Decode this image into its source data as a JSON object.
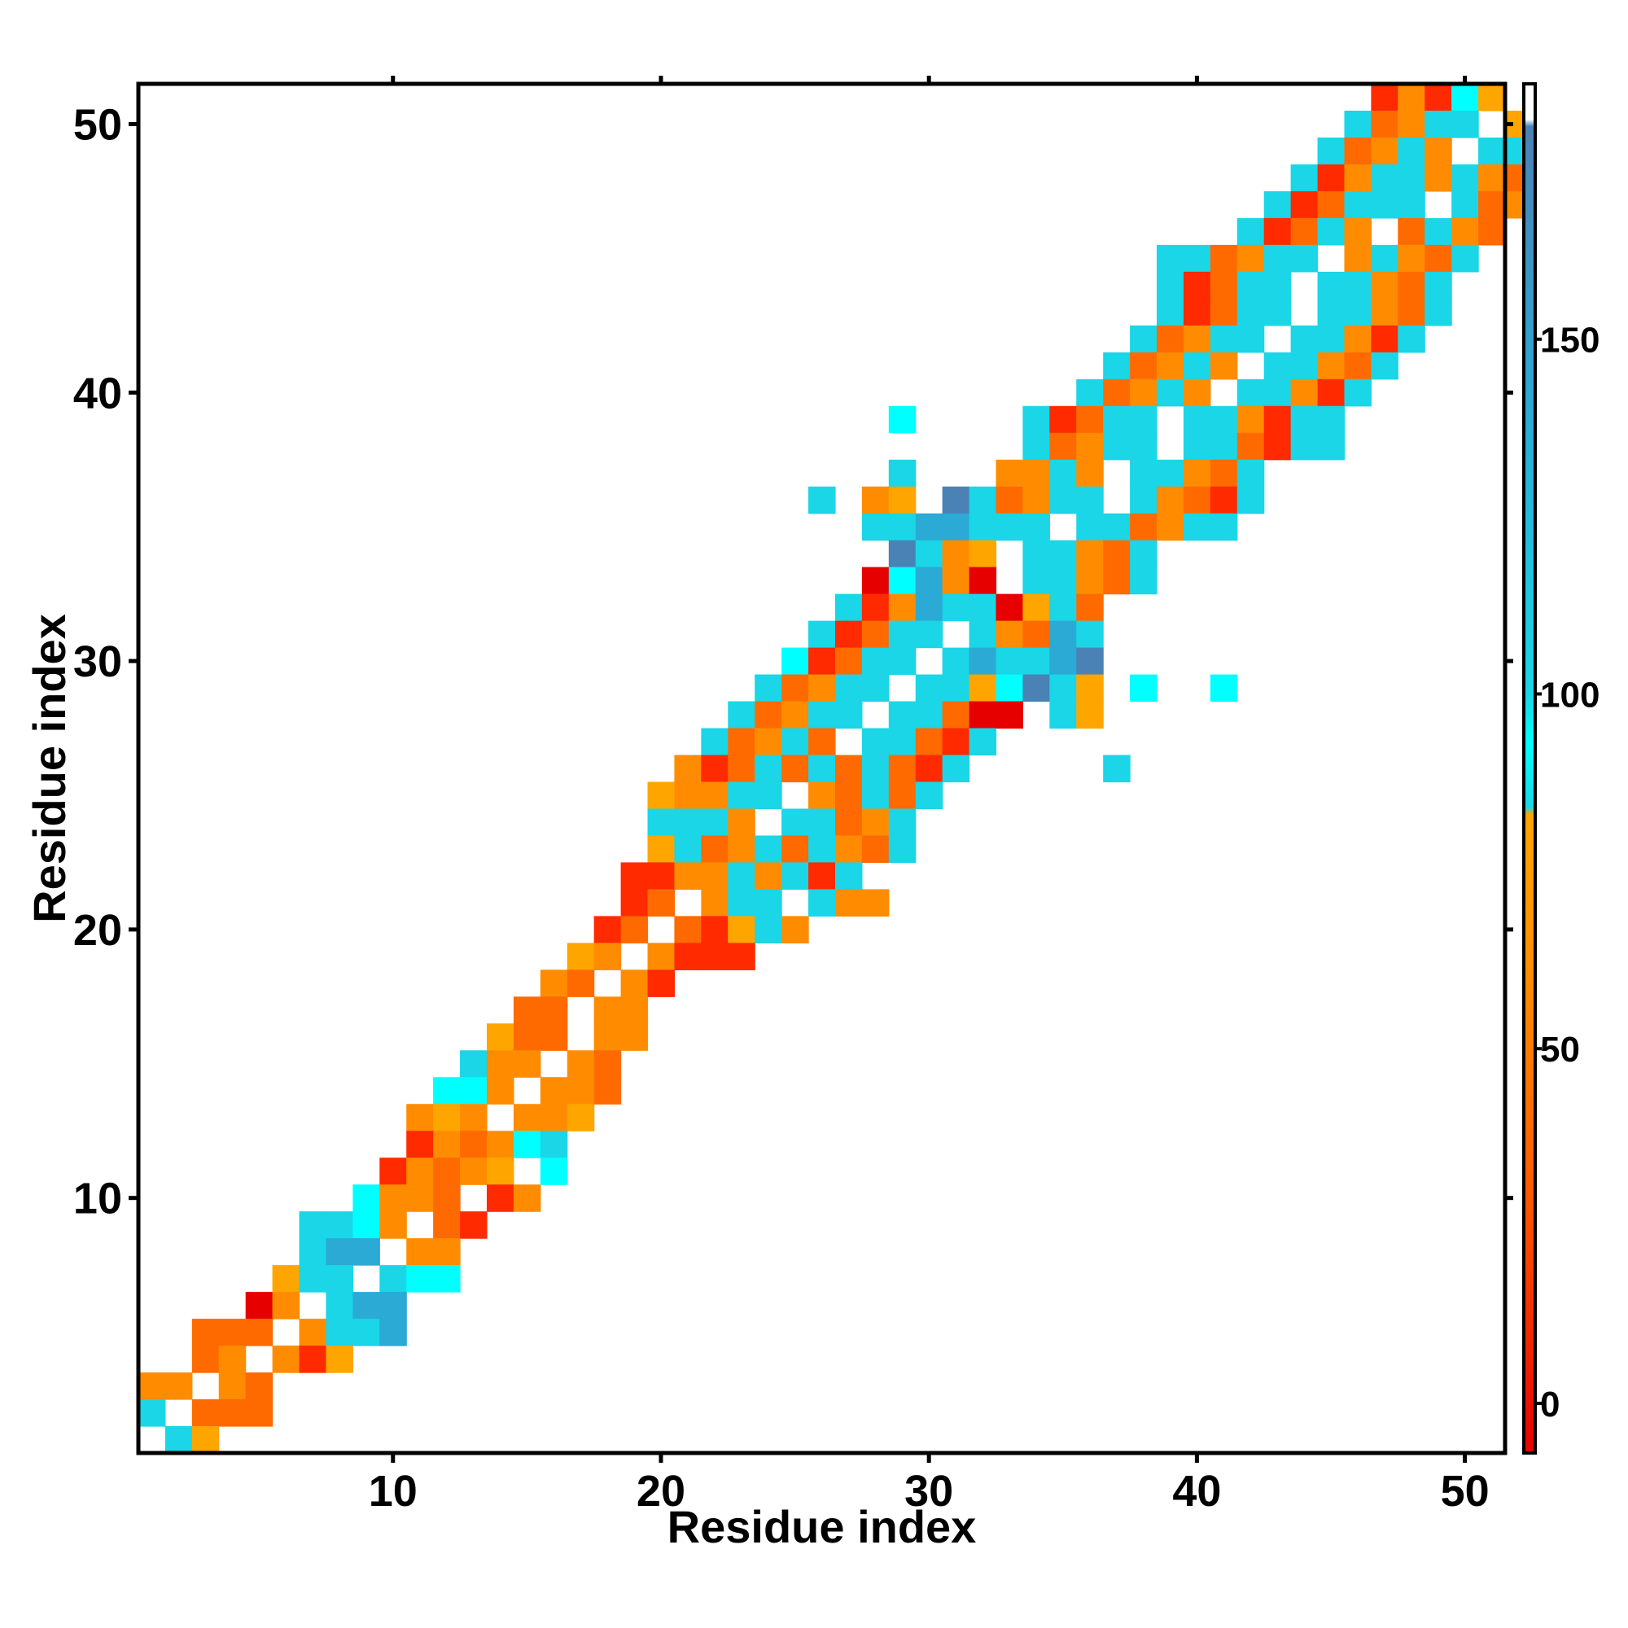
{
  "chart_data": {
    "type": "heatmap",
    "title": "",
    "xlabel": "Residue index",
    "ylabel": "Residue index",
    "xlim": [
      0.5,
      51.5
    ],
    "ylim": [
      0.5,
      51.5
    ],
    "xticks": [
      10,
      20,
      30,
      40,
      50
    ],
    "yticks": [
      10,
      20,
      30,
      40,
      50
    ],
    "grid": false,
    "colorbar": {
      "range": [
        -7,
        186
      ],
      "ticks": [
        0,
        50,
        100,
        150
      ],
      "stops": [
        {
          "value": -7,
          "color": "#e60000"
        },
        {
          "value": 30,
          "color": "#ff5a00"
        },
        {
          "value": 60,
          "color": "#ff8c00"
        },
        {
          "value": 83,
          "color": "#ffa500"
        },
        {
          "value": 84,
          "color": "#1ad6e6"
        },
        {
          "value": 93,
          "color": "#00ffff"
        },
        {
          "value": 100,
          "color": "#1ad6e6"
        },
        {
          "value": 140,
          "color": "#2aaad4"
        },
        {
          "value": 180,
          "color": "#4a82b6"
        },
        {
          "value": 181,
          "color": "#ffffff"
        },
        {
          "value": 186,
          "color": "#ffffff"
        }
      ]
    },
    "colors": {
      "a": "#1ad6e6",
      "c": "#00ffff",
      "b": "#2aaad4",
      "B": "#4a82b6",
      "o": "#ff6a00",
      "O": "#ff8c00",
      "y": "#ffa500",
      "r": "#e60000",
      "R": "#ff2a00"
    },
    "rows": [
      {
        "y": 51,
        "cells": "..............................................RORcy."
      },
      {
        "y": 50,
        "cells": ".............................................aoOaa.y"
      },
      {
        "y": 49,
        "cells": "............................................aoOaO.aa"
      },
      {
        "y": 48,
        "cells": "...........................................aROaaOaOo"
      },
      {
        "y": 47,
        "cells": "..........................................aRoaaa.aoO"
      },
      {
        "y": 46,
        "cells": ".........................................aRoaO.oaOo."
      },
      {
        "y": 45,
        "cells": "......................................aaoOaa.OaOoa.."
      },
      {
        "y": 44,
        "cells": "......................................aRoaa.aaOoa..."
      },
      {
        "y": 43,
        "cells": "......................................aRoaa.aaOoa..."
      },
      {
        "y": 42,
        "cells": ".....................................aoOaa.aaORa...."
      },
      {
        "y": 41,
        "cells": "....................................aoOaO.aaOoa....."
      },
      {
        "y": 40,
        "cells": "...................................aoOaO.aaORa......"
      },
      {
        "y": 39,
        "cells": "............................c....aRoaa.aaORaa......."
      },
      {
        "y": 38,
        "cells": ".................................aoOaa.aaoRaa........"
      },
      {
        "y": 37,
        "cells": "............................a...OOaO.aaOoa.........."
      },
      {
        "y": 36,
        "cells": ".........................a.Oy.BaoOaa.aOoRa..........."
      },
      {
        "y": 35,
        "cells": "...........................aabbaaa.aaoOaa............"
      },
      {
        "y": 34,
        "cells": "............................BaOy.aaOoa..............."
      },
      {
        "y": 33,
        "cells": "...........................rcbOr.aaOoa..............."
      },
      {
        "y": 32,
        "cells": "..........................aRObaaryao................."
      },
      {
        "y": 31,
        "cells": ".........................aRoaa.aOoba................."
      },
      {
        "y": 30,
        "cells": "........................cRoaa.abaabB................."
      },
      {
        "y": 29,
        "cells": ".......................aoOaa.aaycBay.c..c............"
      },
      {
        "y": 28,
        "cells": "......................aoOaa.aaorr.ay................."
      },
      {
        "y": 27,
        "cells": ".....................aoOao.aaoRa......................"
      },
      {
        "y": 26,
        "cells": "....................ORoaoaoaoRa.....a................"
      },
      {
        "y": 25,
        "cells": "...................yOOaa.Ooaoa......................."
      },
      {
        "y": 24,
        "cells": "...................aaaO.aaoOa........................"
      },
      {
        "y": 23,
        "cells": "...................yaoOaoaOoa........................"
      },
      {
        "y": 22,
        "cells": "..................RROOaOaRa.........................."
      },
      {
        "y": 21,
        "cells": "..................Ro.Oaa.aOO........................."
      },
      {
        "y": 20,
        "cells": ".................Ro.oRyaO............................"
      },
      {
        "y": 19,
        "cells": "................yO.ORRR.............................."
      },
      {
        "y": 18,
        "cells": "...............Oo.OR................................."
      },
      {
        "y": 17,
        "cells": "..............oo.OO..................................."
      },
      {
        "y": 16,
        "cells": ".............yoo.OO...................................."
      },
      {
        "y": 15,
        "cells": "............aOO.Oo...................................."
      },
      {
        "y": 14,
        "cells": "...........ccO.OOo....................................."
      },
      {
        "y": 13,
        "cells": "..........OyO.OOy......................................"
      },
      {
        "y": 12,
        "cells": "..........ROoOca......................................."
      },
      {
        "y": 11,
        "cells": ".........ROoOy.c........................................"
      },
      {
        "y": 10,
        "cells": "........cOOo.RO........................................"
      },
      {
        "y": 9,
        "cells": "......aacO.oR.........................................."
      },
      {
        "y": 8,
        "cells": "......abb.OO..........................................."
      },
      {
        "y": 7,
        "cells": ".....yaa.acc............................................"
      },
      {
        "y": 6,
        "cells": "....rO.abb.............................................."
      },
      {
        "y": 5,
        "cells": "..ooo.Oaab..............................................."
      },
      {
        "y": 4,
        "cells": "..oO.ORy................................................."
      },
      {
        "y": 3,
        "cells": "OO.Oo.................................................."
      },
      {
        "y": 2,
        "cells": "a.ooo.................................................."
      },
      {
        "y": 1,
        "cells": ".ay...................................................."
      }
    ]
  }
}
